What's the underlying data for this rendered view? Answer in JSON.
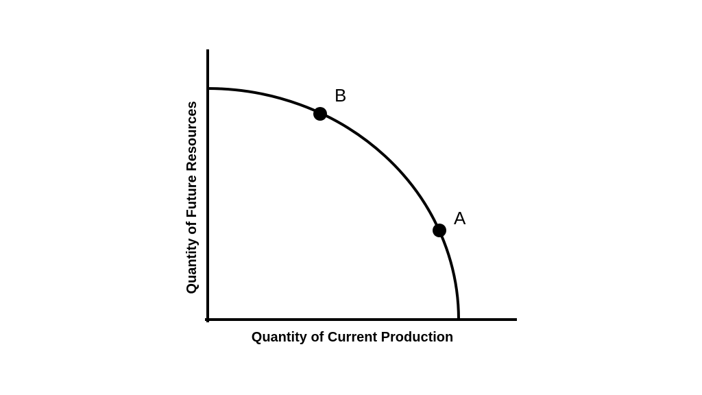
{
  "diagram": {
    "type": "production-possibilities-frontier",
    "x_axis_label": "Quantity of Current Production",
    "y_axis_label": "Quantity of Future Resources",
    "points": [
      {
        "label": "B"
      },
      {
        "label": "A"
      }
    ],
    "colors": {
      "ink": "#000000",
      "background": "#ffffff"
    }
  }
}
